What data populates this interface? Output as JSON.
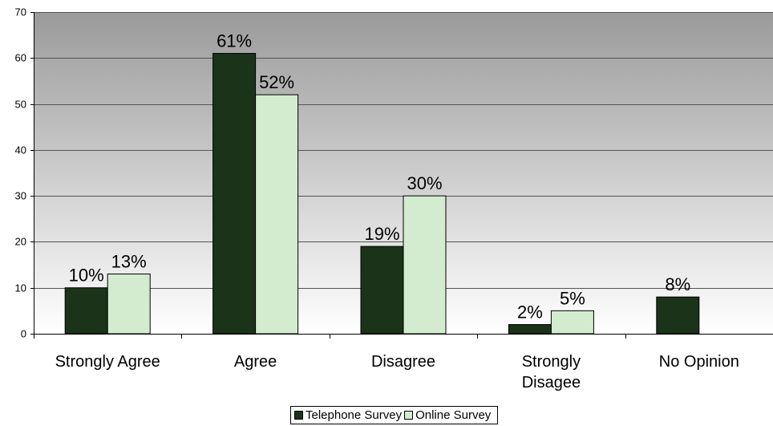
{
  "chart_data": {
    "type": "bar",
    "categories": [
      "Strongly Agree",
      "Agree",
      "Disagree",
      "Strongly Disagee",
      "No Opinion"
    ],
    "category_lines": [
      [
        "Strongly Agree"
      ],
      [
        "Agree"
      ],
      [
        "Disagree"
      ],
      [
        "Strongly",
        "Disagee"
      ],
      [
        "No Opinion"
      ]
    ],
    "series": [
      {
        "name": "Telephone Survey",
        "values": [
          10,
          61,
          19,
          2,
          8
        ],
        "labels": [
          "10%",
          "61%",
          "19%",
          "2%",
          "8%"
        ],
        "color": "#1a3319"
      },
      {
        "name": "Online Survey",
        "values": [
          13,
          52,
          30,
          5,
          null
        ],
        "labels": [
          "13%",
          "52%",
          "30%",
          "5%",
          ""
        ],
        "color": "#d3ecd0"
      }
    ],
    "ylim": [
      0,
      70
    ],
    "yticks": [
      0,
      10,
      20,
      30,
      40,
      50,
      60,
      70
    ],
    "title": "",
    "xlabel": "",
    "ylabel": "",
    "grid": true,
    "legend_position": "bottom",
    "background_gradient": [
      "#ffffff",
      "#9a9a9a"
    ]
  }
}
